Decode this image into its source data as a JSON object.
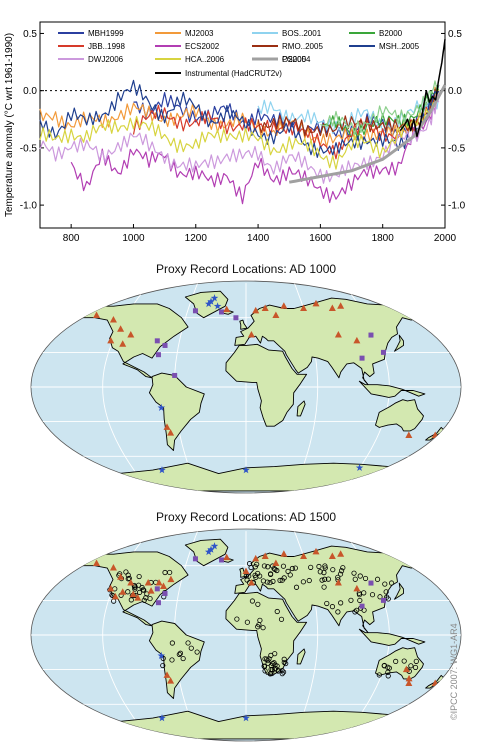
{
  "chart_data": {
    "type": "line",
    "xlabel": "",
    "ylabel": "Temperature anomaly  (°C wrt 1961-1990)",
    "xlim": [
      700,
      2000
    ],
    "ylim": [
      -1.2,
      0.6
    ],
    "xticks": [
      800,
      1000,
      1200,
      1400,
      1600,
      1800,
      2000
    ],
    "yticks": [
      -1.0,
      -0.5,
      0.0,
      0.5
    ],
    "ytick_labels": [
      "-1.0",
      "-0.5",
      "0.0",
      "0.5"
    ],
    "reference_line": 0.0,
    "legend_placement": "top",
    "series": [
      {
        "name": "MBH1999",
        "color": "#2b3fa0",
        "x": [
          1000,
          1050,
          1100,
          1150,
          1200,
          1250,
          1300,
          1350,
          1400,
          1450,
          1500,
          1550,
          1600,
          1650,
          1700,
          1750,
          1800,
          1850,
          1900,
          1950,
          1980
        ],
        "y": [
          -0.1,
          -0.15,
          -0.1,
          -0.18,
          -0.2,
          -0.22,
          -0.18,
          -0.25,
          -0.2,
          -0.3,
          -0.25,
          -0.3,
          -0.35,
          -0.38,
          -0.3,
          -0.28,
          -0.32,
          -0.35,
          -0.3,
          -0.15,
          0.05
        ]
      },
      {
        "name": "MJ2003",
        "color": "#f29a3a",
        "x": [
          700,
          750,
          800,
          850,
          900,
          950,
          1000,
          1050,
          1100,
          1150,
          1200,
          1250,
          1300,
          1350,
          1400,
          1450,
          1500,
          1550,
          1600,
          1650,
          1700,
          1750,
          1800,
          1850,
          1900,
          1950,
          1980
        ],
        "y": [
          -0.25,
          -0.2,
          -0.3,
          -0.28,
          -0.25,
          -0.2,
          -0.18,
          -0.2,
          -0.22,
          -0.25,
          -0.2,
          -0.25,
          -0.3,
          -0.28,
          -0.3,
          -0.35,
          -0.3,
          -0.35,
          -0.4,
          -0.45,
          -0.4,
          -0.35,
          -0.38,
          -0.4,
          -0.3,
          -0.15,
          0.0
        ]
      },
      {
        "name": "BOS..2001",
        "color": "#8fd3ef",
        "x": [
          1400,
          1450,
          1500,
          1550,
          1600,
          1650,
          1700,
          1750,
          1800,
          1850,
          1900,
          1950,
          1980
        ],
        "y": [
          -0.2,
          -0.15,
          -0.2,
          -0.25,
          -0.3,
          -0.28,
          -0.25,
          -0.22,
          -0.3,
          -0.25,
          -0.2,
          -0.1,
          -0.05
        ]
      },
      {
        "name": "B2000",
        "color": "#3aa63a",
        "x": [
          1600,
          1650,
          1700,
          1750,
          1800,
          1850,
          1900,
          1950,
          1980
        ],
        "y": [
          -0.35,
          -0.3,
          -0.35,
          -0.3,
          -0.3,
          -0.25,
          -0.2,
          -0.1,
          0.0
        ]
      },
      {
        "name": "JBB..1998",
        "color": "#d63a2a",
        "x": [
          1000,
          1050,
          1100,
          1150,
          1200,
          1250,
          1300,
          1350,
          1400,
          1450,
          1500,
          1550,
          1600,
          1650,
          1700,
          1750,
          1800,
          1850,
          1900,
          1950,
          1980
        ],
        "y": [
          -0.3,
          -0.25,
          -0.2,
          -0.25,
          -0.3,
          -0.25,
          -0.28,
          -0.3,
          -0.35,
          -0.3,
          -0.3,
          -0.4,
          -0.45,
          -0.5,
          -0.4,
          -0.3,
          -0.35,
          -0.4,
          -0.3,
          -0.15,
          0.0
        ]
      },
      {
        "name": "ECS2002",
        "color": "#b23eb3",
        "x": [
          800,
          850,
          900,
          950,
          1000,
          1050,
          1100,
          1150,
          1200,
          1250,
          1300,
          1350,
          1400,
          1450,
          1500,
          1550,
          1600,
          1650,
          1700,
          1750,
          1800,
          1850,
          1900,
          1950,
          1980
        ],
        "y": [
          -0.6,
          -0.85,
          -0.6,
          -0.7,
          -0.5,
          -0.65,
          -0.55,
          -0.7,
          -0.75,
          -0.8,
          -0.7,
          -0.95,
          -0.65,
          -0.75,
          -0.7,
          -0.8,
          -0.85,
          -0.9,
          -0.85,
          -0.7,
          -0.65,
          -0.7,
          -0.4,
          -0.2,
          -0.05
        ]
      },
      {
        "name": "RMO..2005",
        "color": "#9b2f12",
        "x": [
          1400,
          1450,
          1500,
          1550,
          1600,
          1650,
          1700,
          1750,
          1800,
          1850,
          1900,
          1950,
          1980
        ],
        "y": [
          -0.3,
          -0.25,
          -0.3,
          -0.35,
          -0.3,
          -0.35,
          -0.3,
          -0.25,
          -0.3,
          -0.35,
          -0.3,
          -0.15,
          0.0
        ]
      },
      {
        "name": "MSH..2005",
        "color": "#1f3f8f",
        "x": [
          700,
          750,
          800,
          850,
          900,
          950,
          1000,
          1050,
          1100,
          1150,
          1200,
          1250,
          1300,
          1350,
          1400,
          1450,
          1500,
          1550,
          1600,
          1650,
          1700,
          1750,
          1800,
          1850,
          1900,
          1950,
          1980
        ],
        "y": [
          -0.3,
          -0.35,
          -0.2,
          -0.3,
          -0.2,
          -0.05,
          0.0,
          -0.1,
          -0.2,
          -0.1,
          -0.15,
          -0.25,
          -0.2,
          -0.3,
          -0.35,
          -0.4,
          -0.35,
          -0.45,
          -0.5,
          -0.55,
          -0.45,
          -0.4,
          -0.45,
          -0.5,
          -0.35,
          -0.15,
          0.0
        ]
      },
      {
        "name": "DWJ2006",
        "color": "#cc99dd",
        "x": [
          700,
          750,
          800,
          850,
          900,
          950,
          1000,
          1050,
          1100,
          1150,
          1200,
          1250,
          1300,
          1350,
          1400,
          1450,
          1500,
          1550,
          1600,
          1650,
          1700,
          1750,
          1800,
          1850,
          1900,
          1950,
          1980
        ],
        "y": [
          -0.5,
          -0.55,
          -0.45,
          -0.5,
          -0.6,
          -0.45,
          -0.4,
          -0.5,
          -0.55,
          -0.65,
          -0.7,
          -0.6,
          -0.55,
          -0.6,
          -0.55,
          -0.65,
          -0.6,
          -0.65,
          -0.7,
          -0.75,
          -0.7,
          -0.6,
          -0.55,
          -0.45,
          -0.4,
          -0.25,
          -0.1
        ]
      },
      {
        "name": "HCA..2006",
        "color": "#d7d440",
        "x": [
          700,
          750,
          800,
          850,
          900,
          950,
          1000,
          1050,
          1100,
          1150,
          1200,
          1250,
          1300,
          1350,
          1400,
          1450,
          1500,
          1550,
          1600,
          1650,
          1700,
          1750,
          1800,
          1850,
          1900,
          1950,
          1980
        ],
        "y": [
          -0.4,
          -0.45,
          -0.35,
          -0.4,
          -0.35,
          -0.3,
          -0.25,
          -0.35,
          -0.4,
          -0.45,
          -0.5,
          -0.4,
          -0.35,
          -0.4,
          -0.45,
          -0.5,
          -0.45,
          -0.5,
          -0.55,
          -0.6,
          -0.5,
          -0.45,
          -0.5,
          -0.4,
          -0.3,
          -0.15,
          0.0
        ]
      },
      {
        "name": "O2005",
        "color": "#8ccf8c",
        "x": [
          1600,
          1650,
          1700,
          1750,
          1800,
          1850,
          1900,
          1950,
          1980
        ],
        "y": [
          -0.3,
          -0.28,
          -0.32,
          -0.25,
          -0.2,
          -0.25,
          -0.15,
          -0.05,
          0.05
        ]
      },
      {
        "name": "PS2004",
        "color": "#a0a0a0",
        "width": 3,
        "x": [
          1500,
          1600,
          1700,
          1800,
          1900,
          1950,
          2000
        ],
        "y": [
          -0.8,
          -0.75,
          -0.7,
          -0.6,
          -0.4,
          -0.2,
          0.05
        ]
      },
      {
        "name": "Instrumental (HadCRUT2v)",
        "color": "#000000",
        "width": 1.5,
        "x": [
          1856,
          1870,
          1880,
          1890,
          1900,
          1910,
          1920,
          1930,
          1940,
          1950,
          1960,
          1970,
          1980,
          1990,
          2000
        ],
        "y": [
          -0.35,
          -0.3,
          -0.25,
          -0.35,
          -0.25,
          -0.4,
          -0.3,
          -0.15,
          0.0,
          -0.1,
          -0.05,
          -0.08,
          0.1,
          0.25,
          0.45
        ]
      }
    ]
  },
  "maps": [
    {
      "title": "Proxy Record Locations:  AD 1000"
    },
    {
      "title": "Proxy Record Locations:  AD 1500"
    }
  ],
  "copyright": "©IPCC 2007: WG1-AR4"
}
